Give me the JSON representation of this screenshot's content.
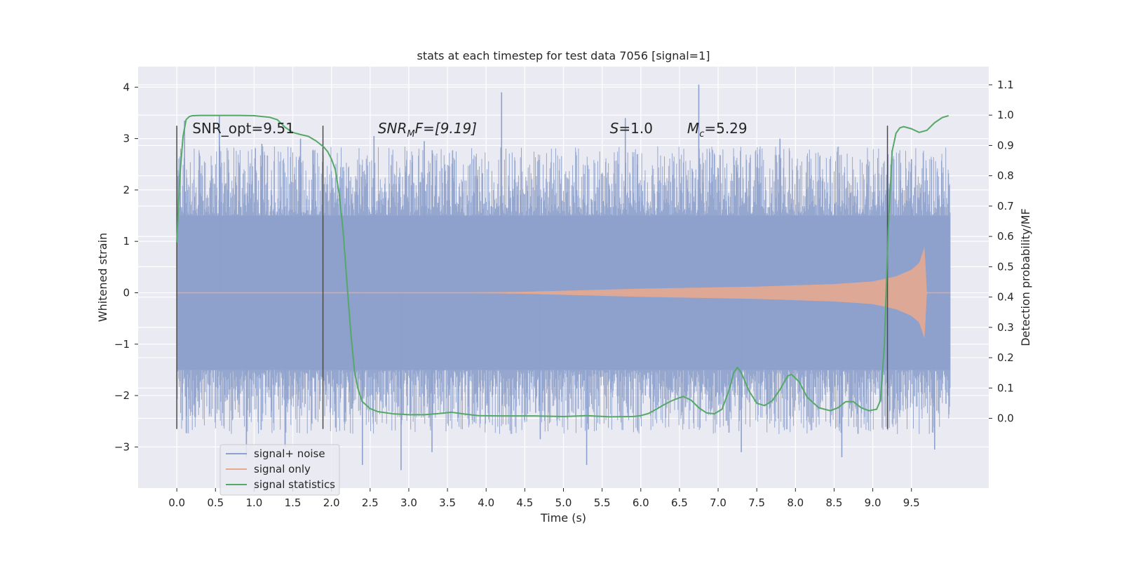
{
  "chart_data": {
    "type": "line",
    "title": "stats at each timestep for test data 7056 [signal=1]",
    "xlabel": "Time (s)",
    "ylabel": "Whitened strain",
    "y2label": "Detection probability/MF",
    "xlim": [
      -0.5,
      10.5
    ],
    "ylim": [
      -3.8,
      4.4
    ],
    "y2lim": [
      -0.23,
      1.16
    ],
    "x_ticks": [
      "0.0",
      "0.5",
      "1.0",
      "1.5",
      "2.0",
      "2.5",
      "3.0",
      "3.5",
      "4.0",
      "4.5",
      "5.0",
      "5.5",
      "6.0",
      "6.5",
      "7.0",
      "7.5",
      "8.0",
      "8.5",
      "9.0",
      "9.5"
    ],
    "y_ticks": [
      "4",
      "3",
      "2",
      "1",
      "0",
      "−1",
      "−2",
      "−3"
    ],
    "y2_ticks": [
      "0.0",
      "0.1",
      "0.2",
      "0.3",
      "0.4",
      "0.5",
      "0.6",
      "0.7",
      "0.8",
      "0.9",
      "1.0",
      "1.1"
    ],
    "grid": true,
    "legend_position": "lower-left",
    "annotations": [
      {
        "text": "SNR_opt=9.51",
        "x": 0.2,
        "y": 3.2
      },
      {
        "pre": "SNR",
        "sub": "M",
        "post": "F=[9.19]",
        "x": 2.6,
        "y": 3.2
      },
      {
        "pre": "S",
        "sub": "",
        "post": "=1.0",
        "x": 5.6,
        "y": 3.2
      },
      {
        "pre": "M",
        "sub": "c",
        "post": "=5.29",
        "x": 6.6,
        "y": 3.2
      }
    ],
    "vertical_markers": [
      {
        "x": 0.0,
        "y": [
          -2.65,
          3.25
        ]
      },
      {
        "x": 1.89,
        "y": [
          -2.65,
          3.25
        ]
      },
      {
        "x": 9.19,
        "y": [
          -2.65,
          3.25
        ]
      }
    ],
    "series": [
      {
        "name": "signal+ noise",
        "color": "#8da0cb",
        "axis": "left",
        "x_range": [
          0.0,
          10.0
        ],
        "band": [
          -1.5,
          1.5
        ],
        "spike_peaks": [
          {
            "x": 0.1,
            "y": 3.35
          },
          {
            "x": 0.55,
            "y": 3.45
          },
          {
            "x": 1.1,
            "y": 2.9
          },
          {
            "x": 1.6,
            "y": 3.0
          },
          {
            "x": 2.55,
            "y": 3.05
          },
          {
            "x": 3.2,
            "y": 2.95
          },
          {
            "x": 4.2,
            "y": 3.9
          },
          {
            "x": 5.8,
            "y": 3.4
          },
          {
            "x": 6.75,
            "y": 4.05
          },
          {
            "x": 7.8,
            "y": 3.0
          },
          {
            "x": 9.5,
            "y": 2.6
          },
          {
            "x": 0.9,
            "y": -3.2
          },
          {
            "x": 1.4,
            "y": -3.0
          },
          {
            "x": 2.4,
            "y": -3.35
          },
          {
            "x": 2.9,
            "y": -3.45
          },
          {
            "x": 3.3,
            "y": -3.1
          },
          {
            "x": 4.7,
            "y": -2.85
          },
          {
            "x": 5.3,
            "y": -3.35
          },
          {
            "x": 7.3,
            "y": -3.1
          },
          {
            "x": 8.6,
            "y": -3.2
          },
          {
            "x": 9.8,
            "y": -3.05
          }
        ]
      },
      {
        "name": "signal only",
        "color": "#e5a98f",
        "axis": "left",
        "amplitude": [
          [
            3.4,
            0.0
          ],
          [
            4.5,
            0.02
          ],
          [
            6.0,
            0.08
          ],
          [
            7.5,
            0.12
          ],
          [
            8.5,
            0.17
          ],
          [
            9.0,
            0.22
          ],
          [
            9.3,
            0.32
          ],
          [
            9.5,
            0.45
          ],
          [
            9.6,
            0.58
          ],
          [
            9.67,
            0.9
          ],
          [
            9.7,
            0.0
          ],
          [
            10.0,
            0.0
          ]
        ]
      },
      {
        "name": "signal statistics",
        "color": "#55a868",
        "axis": "right",
        "x": [
          0.0,
          0.04,
          0.08,
          0.12,
          0.16,
          0.2,
          0.3,
          0.5,
          0.8,
          1.0,
          1.2,
          1.3,
          1.4,
          1.5,
          1.6,
          1.7,
          1.8,
          1.9,
          1.95,
          2.0,
          2.05,
          2.1,
          2.15,
          2.2,
          2.25,
          2.3,
          2.35,
          2.4,
          2.5,
          2.6,
          2.8,
          3.0,
          3.2,
          3.4,
          3.55,
          3.7,
          3.9,
          4.2,
          4.6,
          5.0,
          5.3,
          5.6,
          5.9,
          6.0,
          6.1,
          6.2,
          6.3,
          6.4,
          6.5,
          6.55,
          6.65,
          6.75,
          6.85,
          6.95,
          7.05,
          7.15,
          7.2,
          7.25,
          7.3,
          7.4,
          7.5,
          7.6,
          7.7,
          7.8,
          7.9,
          7.95,
          8.05,
          8.15,
          8.3,
          8.45,
          8.55,
          8.65,
          8.75,
          8.85,
          8.95,
          9.05,
          9.1,
          9.15,
          9.2,
          9.25,
          9.3,
          9.35,
          9.4,
          9.5,
          9.6,
          9.7,
          9.8,
          9.9,
          9.98
        ],
        "y": [
          0.58,
          0.8,
          0.93,
          0.985,
          0.995,
          0.998,
          0.999,
          0.999,
          0.999,
          0.998,
          0.993,
          0.985,
          0.96,
          0.943,
          0.936,
          0.93,
          0.915,
          0.895,
          0.88,
          0.855,
          0.82,
          0.74,
          0.62,
          0.45,
          0.28,
          0.15,
          0.09,
          0.055,
          0.032,
          0.022,
          0.015,
          0.012,
          0.012,
          0.016,
          0.02,
          0.015,
          0.009,
          0.008,
          0.008,
          0.006,
          0.009,
          0.005,
          0.006,
          0.009,
          0.016,
          0.03,
          0.045,
          0.058,
          0.068,
          0.072,
          0.06,
          0.035,
          0.018,
          0.015,
          0.03,
          0.1,
          0.15,
          0.168,
          0.15,
          0.09,
          0.05,
          0.042,
          0.058,
          0.095,
          0.14,
          0.145,
          0.12,
          0.07,
          0.035,
          0.025,
          0.035,
          0.055,
          0.055,
          0.035,
          0.025,
          0.03,
          0.06,
          0.24,
          0.62,
          0.88,
          0.94,
          0.958,
          0.962,
          0.955,
          0.943,
          0.95,
          0.975,
          0.992,
          0.998
        ]
      }
    ]
  }
}
